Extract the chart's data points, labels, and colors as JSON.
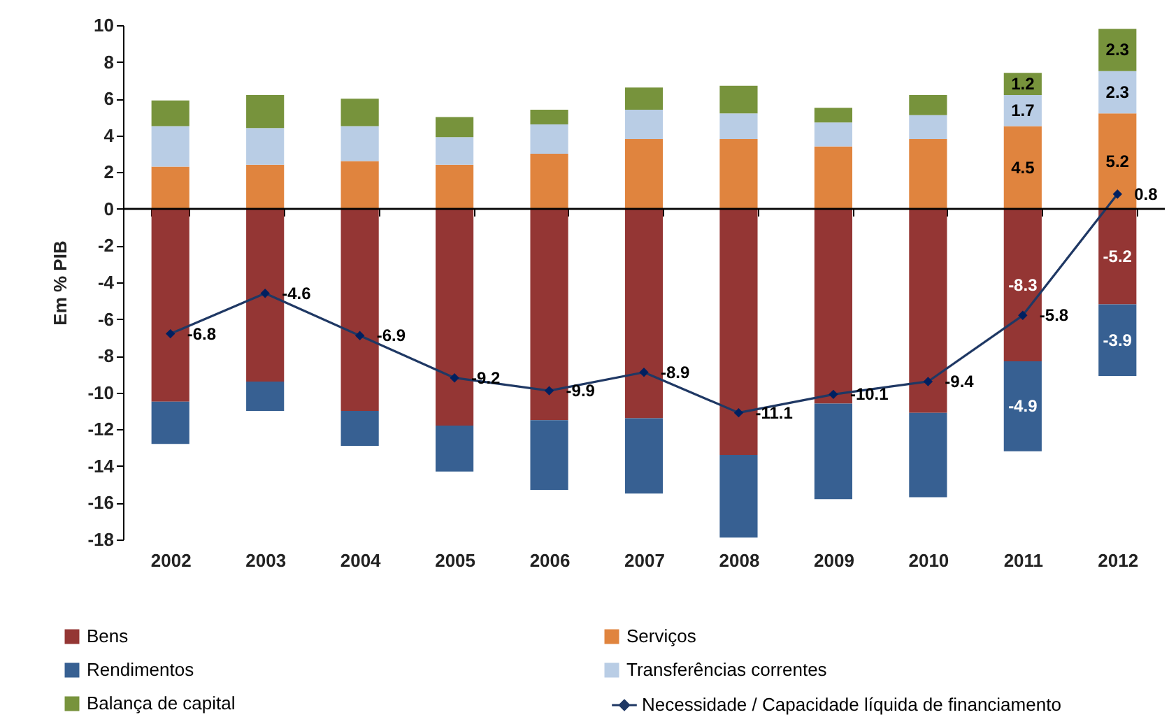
{
  "chart_data": {
    "type": "bar",
    "stacked": true,
    "ylabel": "Em % PIB",
    "categories": [
      "2002",
      "2003",
      "2004",
      "2005",
      "2006",
      "2007",
      "2008",
      "2009",
      "2010",
      "2011",
      "2012"
    ],
    "series": [
      {
        "name": "Bens",
        "color": "#943634",
        "values": [
          -10.5,
          -9.4,
          -11.0,
          -11.8,
          -11.5,
          -11.4,
          -13.4,
          -10.6,
          -11.1,
          -8.3,
          -5.2
        ],
        "value_labels": [
          null,
          null,
          null,
          null,
          null,
          null,
          null,
          null,
          null,
          "-8.3",
          "-5.2"
        ]
      },
      {
        "name": "Serviços",
        "color": "#e0843e",
        "values": [
          2.3,
          2.4,
          2.6,
          2.4,
          3.0,
          3.8,
          3.8,
          3.4,
          3.8,
          4.5,
          5.2
        ],
        "value_labels": [
          null,
          null,
          null,
          null,
          null,
          null,
          null,
          null,
          null,
          "4.5",
          "5.2"
        ]
      },
      {
        "name": "Rendimentos",
        "color": "#376092",
        "values": [
          -2.3,
          -1.6,
          -1.9,
          -2.5,
          -3.8,
          -4.1,
          -4.5,
          -5.2,
          -4.6,
          -4.9,
          -3.9
        ],
        "value_labels": [
          null,
          null,
          null,
          null,
          null,
          null,
          null,
          null,
          null,
          "-4.9",
          "-3.9"
        ]
      },
      {
        "name": "Transferências correntes",
        "color": "#b9cde5",
        "values": [
          2.2,
          2.0,
          1.9,
          1.5,
          1.6,
          1.6,
          1.4,
          1.3,
          1.3,
          1.7,
          2.3
        ],
        "value_labels": [
          null,
          null,
          null,
          null,
          null,
          null,
          null,
          null,
          null,
          "1.7",
          "2.3"
        ]
      },
      {
        "name": "Balança de capital",
        "color": "#77933c",
        "values": [
          1.4,
          1.8,
          1.5,
          1.1,
          0.8,
          1.2,
          1.5,
          0.8,
          1.1,
          1.2,
          2.3
        ],
        "value_labels": [
          null,
          null,
          null,
          null,
          null,
          null,
          null,
          null,
          null,
          "1.2",
          "2.3"
        ]
      },
      {
        "name": "Necessidade / Capacidade líquida de financiamento",
        "type": "line",
        "color": "#1f3864",
        "marker": "diamond",
        "line_style": "solid",
        "values": [
          -6.8,
          -4.6,
          -6.9,
          -9.2,
          -9.9,
          -8.9,
          -11.1,
          -10.1,
          -9.4,
          -5.8,
          0.8
        ],
        "value_labels": [
          "-6.8",
          "-4.6",
          "-6.9",
          "-9.2",
          "-9.9",
          "-8.9",
          "-11.1",
          "-10.1",
          "-9.4",
          "-5.8",
          "0.8"
        ]
      }
    ],
    "ylim": [
      -18,
      10
    ],
    "yticks": [
      -18,
      -16,
      -14,
      -12,
      -10,
      -8,
      -6,
      -4,
      -2,
      0,
      2,
      4,
      6,
      8,
      10
    ],
    "ref_lines": [
      {
        "axis": "y",
        "value": 0,
        "color": "#000000"
      }
    ],
    "grid": false,
    "legend": "bottom"
  }
}
